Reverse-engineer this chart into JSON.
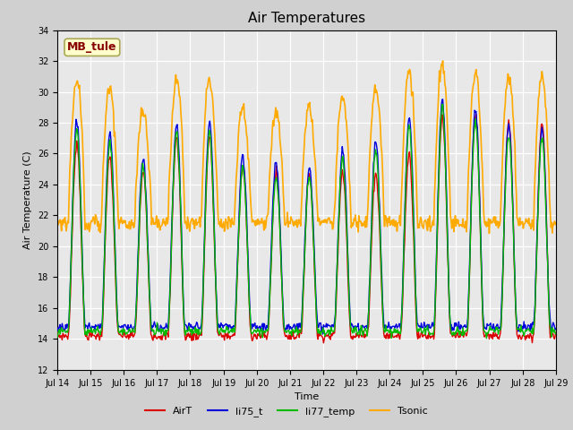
{
  "title": "Air Temperatures",
  "xlabel": "Time",
  "ylabel": "Air Temperature (C)",
  "ylim": [
    12,
    34
  ],
  "yticks": [
    12,
    14,
    16,
    18,
    20,
    22,
    24,
    26,
    28,
    30,
    32,
    34
  ],
  "x_tick_labels": [
    "Jul 14",
    "Jul 15",
    "Jul 16",
    "Jul 17",
    "Jul 18",
    "Jul 19",
    "Jul 20",
    "Jul 21",
    "Jul 22",
    "Jul 23",
    "Jul 24",
    "Jul 25",
    "Jul 26",
    "Jul 27",
    "Jul 28",
    "Jul 29"
  ],
  "series": {
    "AirT": {
      "color": "#dd0000",
      "lw": 1.0
    },
    "li75_t": {
      "color": "#0000dd",
      "lw": 1.0
    },
    "li77_temp": {
      "color": "#00bb00",
      "lw": 1.0
    },
    "Tsonic": {
      "color": "#ffaa00",
      "lw": 1.2
    }
  },
  "annotation_text": "MB_tule",
  "annotation_color": "#880000",
  "annotation_bg": "#ffffcc",
  "fig_bg": "#d0d0d0",
  "plot_bg": "#e8e8e8",
  "title_fontsize": 11,
  "axis_fontsize": 8,
  "tick_fontsize": 7,
  "legend_fontsize": 8
}
